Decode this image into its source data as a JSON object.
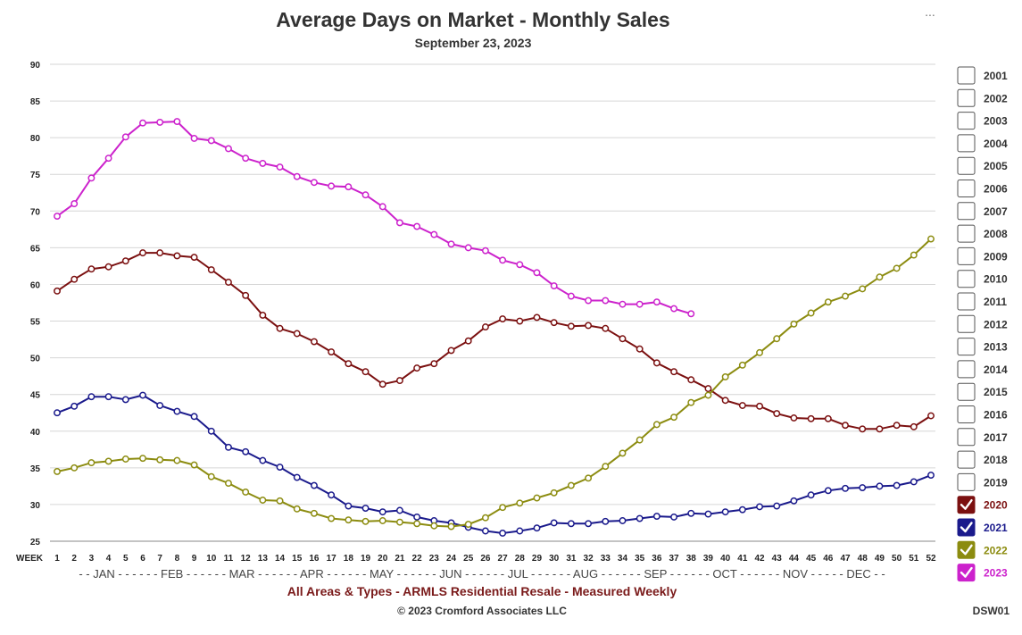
{
  "menu": "...",
  "chart_code": "DSW01",
  "chart_data": {
    "type": "line",
    "title": "Average Days on Market - Monthly Sales",
    "subtitle": "September 23, 2023",
    "x_label": "WEEK",
    "ylim": [
      25,
      90
    ],
    "yticks": [
      25,
      30,
      35,
      40,
      45,
      50,
      55,
      60,
      65,
      70,
      75,
      80,
      85,
      90
    ],
    "x_ticks": [
      "1",
      "2",
      "3",
      "4",
      "5",
      "6",
      "7",
      "8",
      "9",
      "10",
      "11",
      "12",
      "13",
      "14",
      "15",
      "16",
      "17",
      "18",
      "19",
      "20",
      "21",
      "22",
      "23",
      "24",
      "25",
      "26",
      "27",
      "28",
      "29",
      "30",
      "31",
      "32",
      "33",
      "34",
      "35",
      "36",
      "37",
      "38",
      "39",
      "40",
      "41",
      "42",
      "43",
      "44",
      "45",
      "46",
      "47",
      "48",
      "49",
      "50",
      "51",
      "52"
    ],
    "month_axis": "- - JAN - - - - - - FEB - - - - - - MAR - - - - - - APR - - - - - - MAY - - - - - - JUN - - - - - - JUL - - - - - - AUG - - - - - - SEP - - - - - - OCT - - - - - - NOV - - - - - DEC - -",
    "grid": true,
    "legend_position": "right",
    "footer": "All Areas & Types - ARMLS Residential Resale - Measured Weekly",
    "copyright": "© 2023 Cromford Associates LLC",
    "legend": [
      {
        "label": "2001",
        "checked": false
      },
      {
        "label": "2002",
        "checked": false
      },
      {
        "label": "2003",
        "checked": false
      },
      {
        "label": "2004",
        "checked": false
      },
      {
        "label": "2005",
        "checked": false
      },
      {
        "label": "2006",
        "checked": false
      },
      {
        "label": "2007",
        "checked": false
      },
      {
        "label": "2008",
        "checked": false
      },
      {
        "label": "2009",
        "checked": false
      },
      {
        "label": "2010",
        "checked": false
      },
      {
        "label": "2011",
        "checked": false
      },
      {
        "label": "2012",
        "checked": false
      },
      {
        "label": "2013",
        "checked": false
      },
      {
        "label": "2014",
        "checked": false
      },
      {
        "label": "2015",
        "checked": false
      },
      {
        "label": "2016",
        "checked": false
      },
      {
        "label": "2017",
        "checked": false
      },
      {
        "label": "2018",
        "checked": false
      },
      {
        "label": "2019",
        "checked": false
      },
      {
        "label": "2020",
        "checked": true,
        "color": "#7b1010"
      },
      {
        "label": "2021",
        "checked": true,
        "color": "#1a1a8c"
      },
      {
        "label": "2022",
        "checked": true,
        "color": "#8c8c10"
      },
      {
        "label": "2023",
        "checked": true,
        "color": "#cc22cc"
      }
    ],
    "series": [
      {
        "name": "2020",
        "color": "#7b1010",
        "values": [
          59.1,
          60.7,
          62.1,
          62.4,
          63.2,
          64.3,
          64.3,
          63.9,
          63.7,
          62.0,
          60.3,
          58.5,
          55.8,
          54.0,
          53.3,
          52.2,
          50.8,
          49.2,
          48.1,
          46.4,
          46.9,
          48.6,
          49.2,
          51.0,
          52.3,
          54.2,
          55.3,
          55.0,
          55.5,
          54.8,
          54.3,
          54.4,
          54.0,
          52.6,
          51.2,
          49.3,
          48.1,
          47.0,
          45.8,
          44.2,
          43.5,
          43.4,
          42.4,
          41.8,
          41.7,
          41.7,
          40.8,
          40.3,
          40.3,
          40.8,
          40.6,
          42.1
        ]
      },
      {
        "name": "2021",
        "color": "#1a1a8c",
        "values": [
          42.5,
          43.4,
          44.7,
          44.7,
          44.3,
          44.9,
          43.5,
          42.7,
          42.0,
          40.0,
          37.8,
          37.2,
          36.0,
          35.1,
          33.7,
          32.6,
          31.3,
          29.8,
          29.5,
          29.0,
          29.2,
          28.3,
          27.8,
          27.5,
          26.9,
          26.4,
          26.1,
          26.4,
          26.8,
          27.5,
          27.4,
          27.4,
          27.7,
          27.8,
          28.1,
          28.4,
          28.3,
          28.8,
          28.7,
          29.0,
          29.3,
          29.7,
          29.8,
          30.5,
          31.3,
          31.9,
          32.2,
          32.3,
          32.5,
          32.6,
          33.1,
          34.0
        ]
      },
      {
        "name": "2022",
        "color": "#8c8c10",
        "values": [
          34.5,
          35.0,
          35.7,
          35.9,
          36.2,
          36.3,
          36.1,
          36.0,
          35.4,
          33.8,
          32.9,
          31.7,
          30.6,
          30.5,
          29.4,
          28.8,
          28.1,
          27.9,
          27.7,
          27.8,
          27.6,
          27.4,
          27.1,
          27.0,
          27.3,
          28.2,
          29.6,
          30.2,
          30.9,
          31.6,
          32.6,
          33.6,
          35.2,
          37.0,
          38.8,
          40.9,
          41.9,
          43.9,
          44.9,
          47.4,
          49.0,
          50.7,
          52.6,
          54.6,
          56.1,
          57.6,
          58.4,
          59.4,
          61.0,
          62.2,
          64.0,
          66.2
        ]
      },
      {
        "name": "2023",
        "color": "#cc22cc",
        "values": [
          69.3,
          71.0,
          74.5,
          77.2,
          80.1,
          82.0,
          82.1,
          82.2,
          79.9,
          79.6,
          78.5,
          77.2,
          76.5,
          76.0,
          74.7,
          73.9,
          73.4,
          73.3,
          72.2,
          70.6,
          68.4,
          67.9,
          66.8,
          65.5,
          65.0,
          64.6,
          63.3,
          62.7,
          61.6,
          59.8,
          58.4,
          57.8,
          57.8,
          57.3,
          57.3,
          57.6,
          56.7,
          56.0
        ]
      }
    ]
  }
}
